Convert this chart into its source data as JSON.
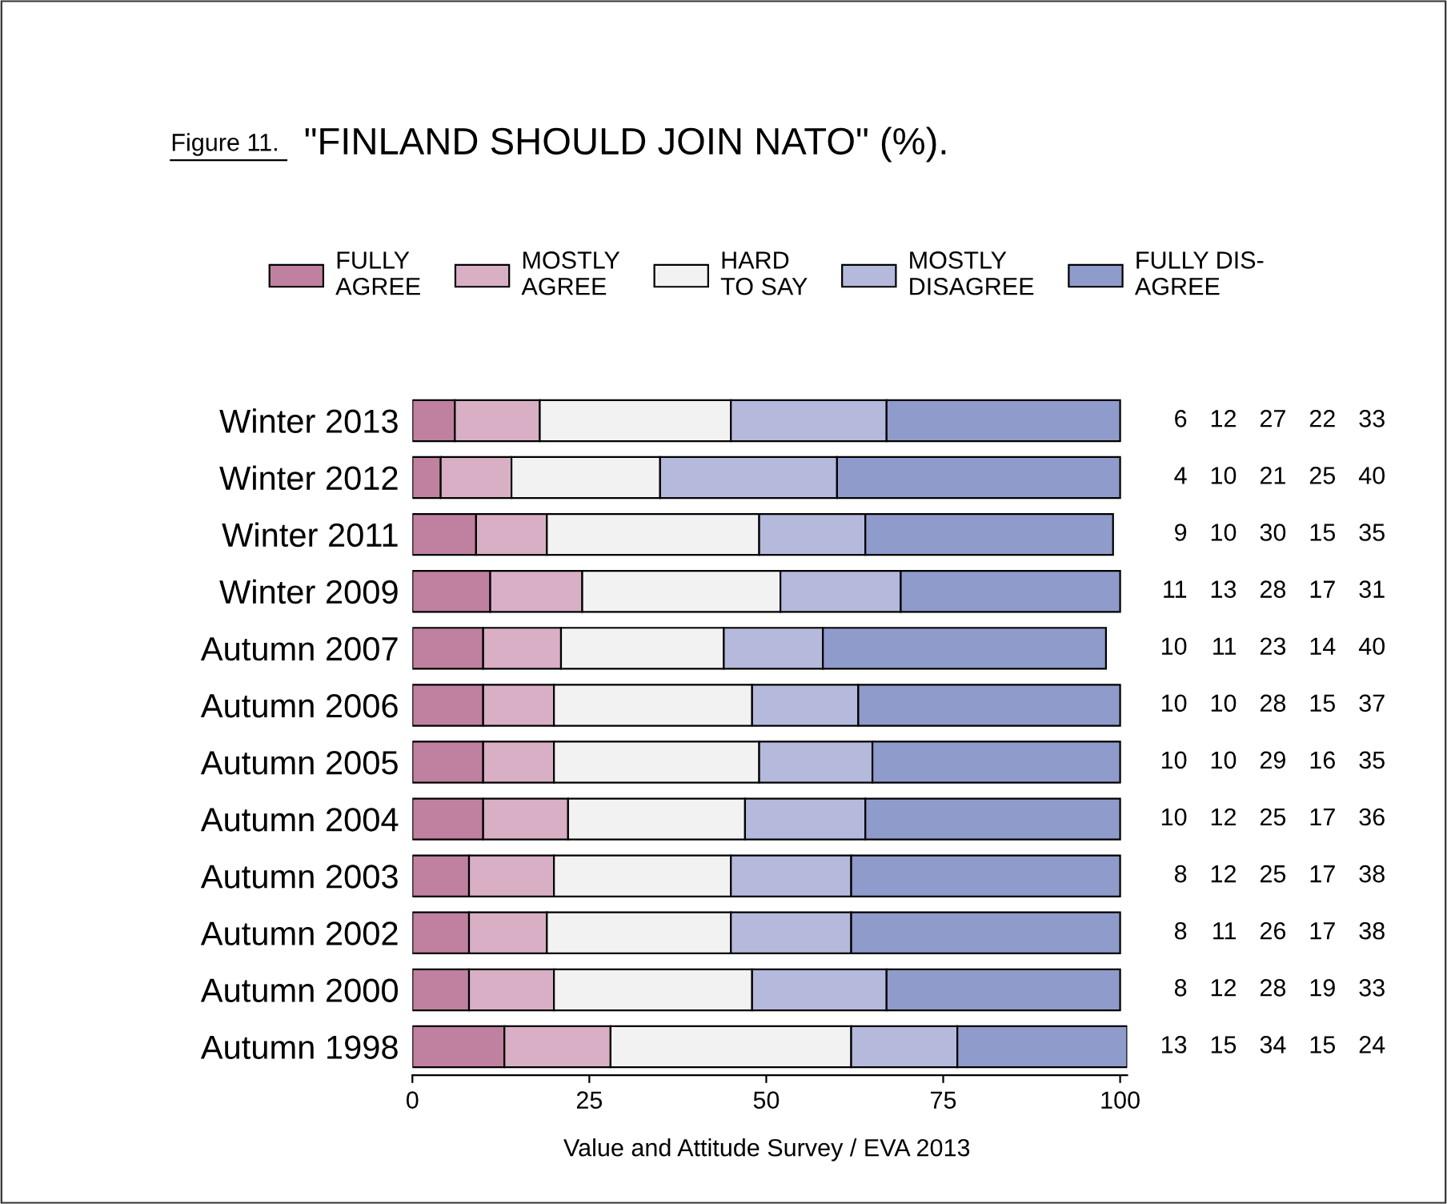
{
  "chart_data": {
    "type": "bar",
    "orientation": "horizontal",
    "stacked": true,
    "title": "\"FINLAND SHOULD JOIN NATO\" (%).",
    "categories": [
      "Winter 2013",
      "Winter 2012",
      "Winter 2011",
      "Winter 2009",
      "Autumn 2007",
      "Autumn 2006",
      "Autumn 2005",
      "Autumn 2004",
      "Autumn 2003",
      "Autumn 2002",
      "Autumn 2000",
      "Autumn 1998"
    ],
    "series": [
      {
        "name": "FULLY\nAGREE",
        "color": "#c0809f",
        "values": [
          6,
          4,
          9,
          11,
          10,
          10,
          10,
          10,
          8,
          8,
          8,
          13
        ]
      },
      {
        "name": "MOSTLY\nAGREE",
        "color": "#d8afc4",
        "values": [
          12,
          10,
          10,
          13,
          11,
          10,
          10,
          12,
          12,
          11,
          12,
          15
        ]
      },
      {
        "name": "HARD\nTO SAY",
        "color": "#f2f2f2",
        "values": [
          27,
          21,
          30,
          28,
          23,
          28,
          29,
          25,
          25,
          26,
          28,
          34
        ]
      },
      {
        "name": "MOSTLY\nDISAGREE",
        "color": "#b5b9dc",
        "values": [
          22,
          25,
          15,
          17,
          14,
          15,
          16,
          17,
          17,
          17,
          19,
          15
        ]
      },
      {
        "name": "FULLY DIS-\nAGREE",
        "color": "#8f9bcb",
        "values": [
          33,
          40,
          35,
          31,
          40,
          37,
          35,
          36,
          38,
          38,
          33,
          24
        ]
      }
    ],
    "xlim": [
      0,
      101
    ],
    "xticks": [
      0,
      25,
      50,
      75,
      100
    ],
    "grid": false,
    "legend": "top",
    "data_labels": true,
    "annotations": [
      "Figure 11.",
      "Value and Attitude Survey / EVA 2013"
    ]
  }
}
